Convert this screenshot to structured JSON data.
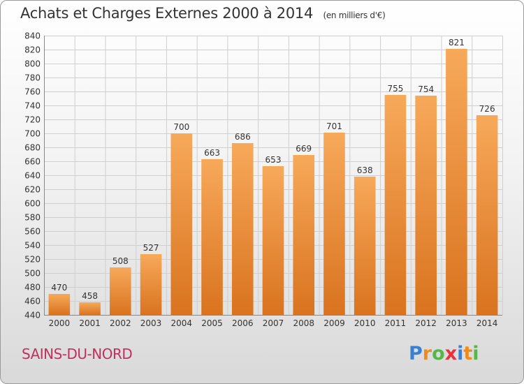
{
  "title": "Achats et Charges Externes 2000 à 2014",
  "unit_note": "(en milliers d'€)",
  "town": "SAINS-DU-NORD",
  "logo": {
    "letters": [
      "P",
      "r",
      "o",
      "x",
      "i",
      "t",
      "i"
    ],
    "colors": [
      "#3a7fd0",
      "#f08a1c",
      "#54b848",
      "#e8313a",
      "#3a7fd0",
      "#f08a1c",
      "#54b848"
    ]
  },
  "colors": {
    "bar_top": "#f7a95a",
    "bar_bottom": "#d9731f",
    "grid": "#cfcfcf"
  },
  "chart_data": {
    "type": "bar",
    "title": "Achats et Charges Externes 2000 à 2014",
    "categories": [
      "2000",
      "2001",
      "2002",
      "2003",
      "2004",
      "2005",
      "2006",
      "2007",
      "2008",
      "2009",
      "2010",
      "2011",
      "2012",
      "2013",
      "2014"
    ],
    "values": [
      470,
      458,
      508,
      527,
      700,
      663,
      686,
      653,
      669,
      701,
      638,
      755,
      754,
      821,
      726
    ],
    "ylim": [
      440,
      840
    ],
    "yticks": [
      440,
      460,
      480,
      500,
      520,
      540,
      560,
      580,
      600,
      620,
      640,
      660,
      680,
      700,
      720,
      740,
      760,
      780,
      800,
      820,
      840
    ],
    "grid": true,
    "data_labels": true,
    "xlabel": "",
    "ylabel": ""
  }
}
